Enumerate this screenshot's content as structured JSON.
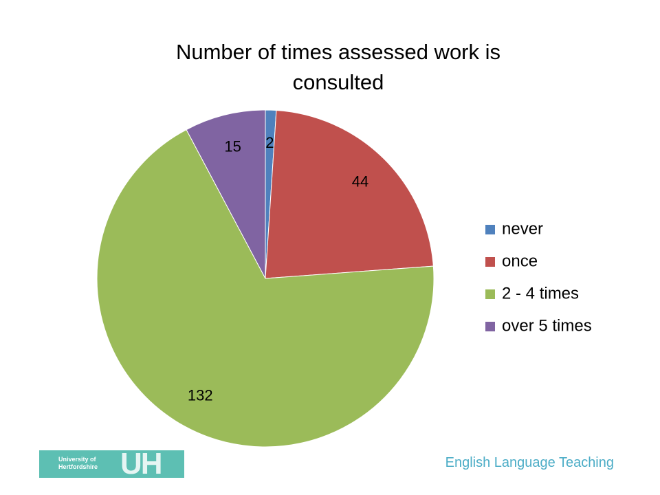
{
  "chart_data": {
    "type": "pie",
    "title": "Number of times assessed work is consulted",
    "categories": [
      "never",
      "once",
      "2 - 4 times",
      "over 5 times"
    ],
    "values": [
      2,
      44,
      132,
      15
    ],
    "colors": [
      "#4f81bd",
      "#c0504d",
      "#9bbb59",
      "#8064a2"
    ],
    "legend": "right"
  },
  "footer": {
    "text": "English Language Teaching",
    "logo": {
      "line1": "University of",
      "line2": "Hertfordshire",
      "mark": "UH"
    }
  }
}
